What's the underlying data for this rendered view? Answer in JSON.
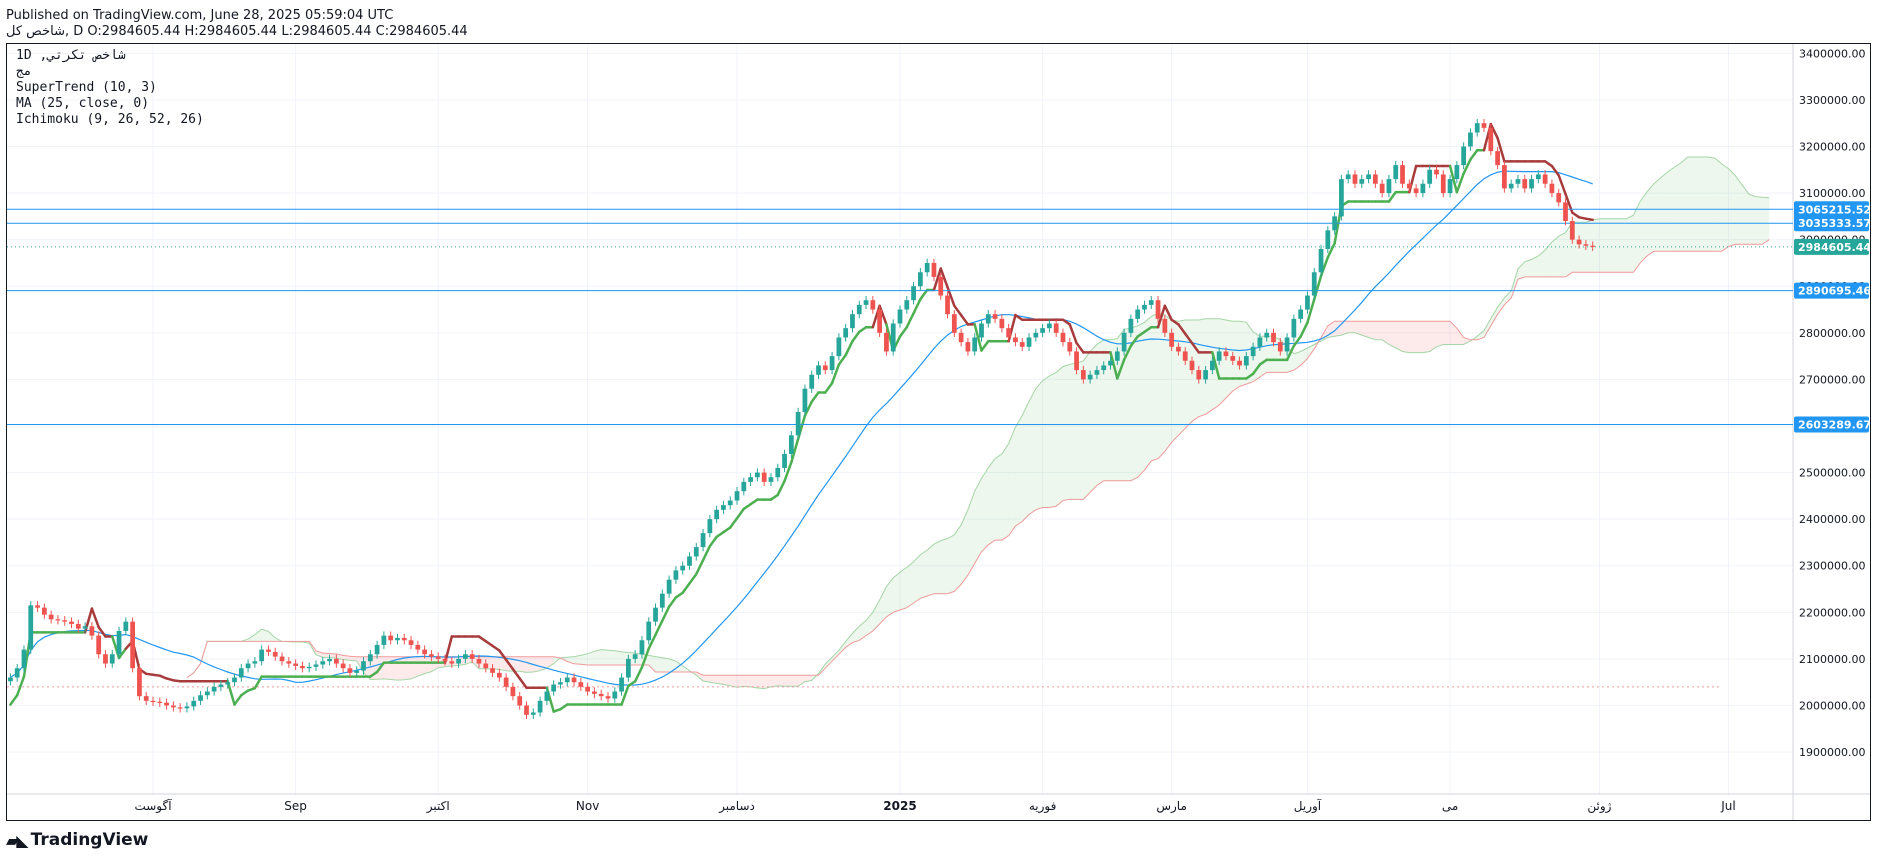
{
  "header": {
    "published": "Published on TradingView.com, June 28, 2025 05:59:04 UTC",
    "symbol_line": "شاخص كل, D O:2984605.44 H:2984605.44 L:2984605.44 C:2984605.44"
  },
  "legend": {
    "line1": "1D ,شاخص تكرتي",
    "line2": "مج",
    "line3": "SuperTrend (10, 3)",
    "line4": "MA (25, close, 0)",
    "line5": "Ichimoku (9, 26, 52, 26)"
  },
  "brand": {
    "name": "TradingView",
    "icon": "tv-logo-icon"
  },
  "colors": {
    "up": "#26a69a",
    "down": "#ef5350",
    "supertrend_up": "#4caf50",
    "supertrend_down": "#a83b3b",
    "ma": "#2196f3",
    "hline": "#2196f3",
    "price_label": "#26a69a"
  },
  "chart_data": {
    "type": "candlestick",
    "title": "",
    "y_range": [
      1810000,
      3420000
    ],
    "y_ticks": [
      1900000,
      2000000,
      2100000,
      2200000,
      2300000,
      2400000,
      2500000,
      2600000,
      2700000,
      2800000,
      2900000,
      3000000,
      3100000,
      3200000,
      3300000,
      3400000
    ],
    "y_tick_labels": [
      "1900000.00",
      "2000000.00",
      "2100000.00",
      "2200000.00",
      "2300000.00",
      "2400000.00",
      "2500000.00",
      "2600000.00",
      "2700000.00",
      "2800000.00",
      "2900000.00",
      "3000000.00",
      "3100000.00",
      "3200000.00",
      "3300000.00",
      "3400000.00"
    ],
    "x_labels": [
      {
        "bar": 21,
        "label": "آگوست"
      },
      {
        "bar": 42,
        "label": "Sep"
      },
      {
        "bar": 63,
        "label": "اكتبر"
      },
      {
        "bar": 85,
        "label": "Nov"
      },
      {
        "bar": 107,
        "label": "دسامبر"
      },
      {
        "bar": 131,
        "label": "2025"
      },
      {
        "bar": 152,
        "label": "فوريه"
      },
      {
        "bar": 171,
        "label": "مارس"
      },
      {
        "bar": 191,
        "label": "آوريل"
      },
      {
        "bar": 212,
        "label": "مى"
      },
      {
        "bar": 234,
        "label": "ژوئن"
      },
      {
        "bar": 253,
        "label": "Jul"
      }
    ],
    "x_count": 263,
    "last_bar": 240,
    "closes": [
      2060000,
      2080000,
      2120000,
      2215000,
      2210000,
      2195000,
      2185000,
      2183000,
      2180000,
      2175000,
      2165000,
      2170000,
      2150000,
      2110000,
      2090000,
      2110000,
      2160000,
      2180000,
      2080000,
      2020000,
      2010000,
      2008000,
      2006000,
      2000000,
      1996000,
      1994000,
      1998000,
      2010000,
      2022000,
      2030000,
      2040000,
      2045000,
      2050000,
      2060000,
      2080000,
      2090000,
      2095000,
      2120000,
      2115000,
      2105000,
      2095000,
      2090000,
      2085000,
      2080000,
      2083000,
      2088000,
      2095000,
      2100000,
      2090000,
      2080000,
      2070000,
      2075000,
      2095000,
      2110000,
      2130000,
      2150000,
      2140000,
      2145000,
      2140000,
      2130000,
      2120000,
      2110000,
      2105000,
      2100000,
      2095000,
      2090000,
      2100000,
      2110000,
      2100000,
      2090000,
      2080000,
      2070000,
      2060000,
      2040000,
      2020000,
      2000000,
      1980000,
      1985000,
      2010000,
      2030000,
      2045000,
      2050000,
      2060000,
      2050000,
      2040000,
      2030000,
      2025000,
      2020000,
      2015000,
      2030000,
      2060000,
      2100000,
      2110000,
      2140000,
      2180000,
      2210000,
      2240000,
      2270000,
      2290000,
      2300000,
      2320000,
      2340000,
      2370000,
      2400000,
      2420000,
      2430000,
      2440000,
      2460000,
      2480000,
      2490000,
      2500000,
      2480000,
      2490000,
      2510000,
      2540000,
      2580000,
      2630000,
      2680000,
      2710000,
      2730000,
      2720000,
      2750000,
      2790000,
      2810000,
      2840000,
      2860000,
      2870000,
      2850000,
      2800000,
      2760000,
      2820000,
      2850000,
      2870000,
      2900000,
      2930000,
      2950000,
      2920000,
      2880000,
      2840000,
      2800000,
      2780000,
      2760000,
      2790000,
      2820000,
      2840000,
      2830000,
      2810000,
      2790000,
      2780000,
      2770000,
      2790000,
      2800000,
      2810000,
      2820000,
      2800000,
      2780000,
      2760000,
      2720000,
      2700000,
      2710000,
      2720000,
      2730000,
      2740000,
      2760000,
      2800000,
      2830000,
      2850000,
      2860000,
      2870000,
      2830000,
      2800000,
      2770000,
      2760000,
      2740000,
      2720000,
      2700000,
      2720000,
      2740000,
      2760000,
      2750000,
      2740000,
      2730000,
      2750000,
      2770000,
      2790000,
      2800000,
      2780000,
      2760000,
      2790000,
      2830000,
      2850000,
      2880000,
      2930000,
      2980000,
      3020000,
      3050000,
      3130000,
      3140000,
      3120000,
      3130000,
      3140000,
      3120000,
      3100000,
      3130000,
      3160000,
      3120000,
      3110000,
      3100000,
      3120000,
      3150000,
      3140000,
      3100000,
      3130000,
      3160000,
      3200000,
      3230000,
      3250000,
      3240000,
      3190000,
      3160000,
      3110000,
      3120000,
      3130000,
      3110000,
      3130000,
      3140000,
      3120000,
      3100000,
      3080000,
      3040000,
      3000000,
      2990000,
      2987000,
      2984605
    ]
  },
  "price_lines": [
    {
      "value": 3065215.52,
      "label": "3065215.52"
    },
    {
      "value": 3035333.57,
      "label": "3035333.57"
    },
    {
      "value": 2890695.46,
      "label": "2890695.46"
    },
    {
      "value": 2603289.67,
      "label": "2603289.67"
    }
  ],
  "last_price": {
    "value": 2984605.44,
    "label": "2984605.44"
  },
  "baseline_value": 2040000
}
